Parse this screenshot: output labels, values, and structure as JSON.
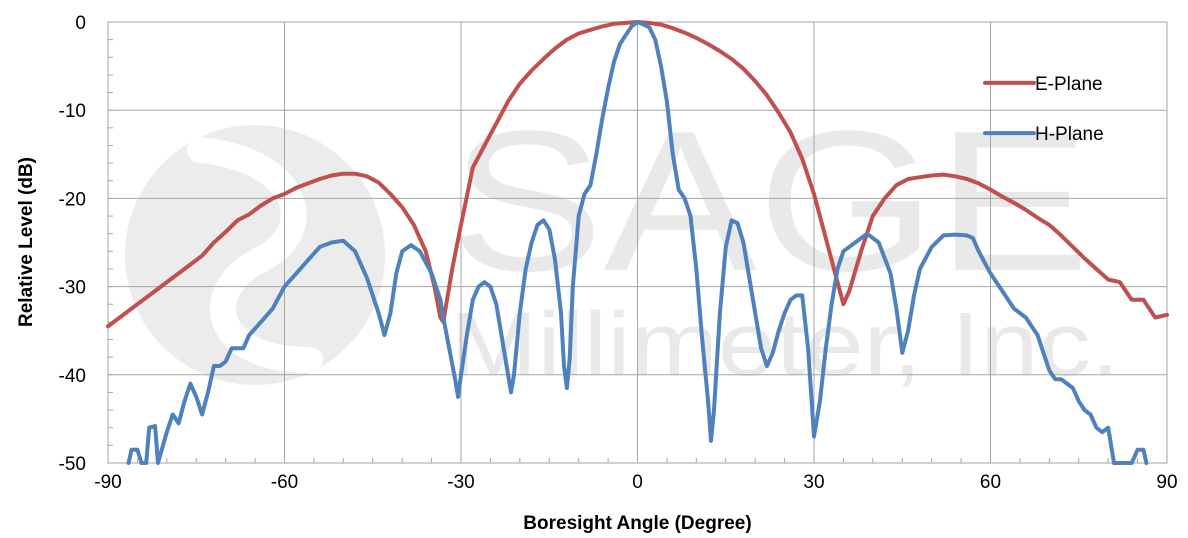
{
  "watermark": {
    "line1": "SAGE",
    "line2": "Millimeter, Inc."
  },
  "chart_data": {
    "type": "line",
    "xlabel": "Boresight Angle (Degree)",
    "ylabel": "Relative Level (dB)",
    "xlim": [
      -90,
      90
    ],
    "ylim": [
      -50,
      0
    ],
    "xticks": [
      -90,
      -60,
      -30,
      0,
      30,
      60,
      90
    ],
    "yticks": [
      0,
      -10,
      -20,
      -30,
      -40,
      -50
    ],
    "grid": true,
    "legend_position": "right",
    "series": [
      {
        "name": "E-Plane",
        "color": "#c0504d",
        "points": [
          [
            -90,
            -34.5
          ],
          [
            -88,
            -33.5
          ],
          [
            -86,
            -32.5
          ],
          [
            -84,
            -31.5
          ],
          [
            -82,
            -30.5
          ],
          [
            -80,
            -29.5
          ],
          [
            -78,
            -28.5
          ],
          [
            -76,
            -27.5
          ],
          [
            -74,
            -26.5
          ],
          [
            -72,
            -25.0
          ],
          [
            -70,
            -23.8
          ],
          [
            -68,
            -22.5
          ],
          [
            -66,
            -21.8
          ],
          [
            -64,
            -20.8
          ],
          [
            -62,
            -20.0
          ],
          [
            -60,
            -19.5
          ],
          [
            -58,
            -18.8
          ],
          [
            -56,
            -18.3
          ],
          [
            -54,
            -17.8
          ],
          [
            -52,
            -17.4
          ],
          [
            -50,
            -17.2
          ],
          [
            -48,
            -17.2
          ],
          [
            -46,
            -17.5
          ],
          [
            -44,
            -18.2
          ],
          [
            -42,
            -19.5
          ],
          [
            -40,
            -21.0
          ],
          [
            -38,
            -23.0
          ],
          [
            -36,
            -26.0
          ],
          [
            -34.5,
            -30.0
          ],
          [
            -33.5,
            -33.5
          ],
          [
            -33,
            -34.0
          ],
          [
            -32.5,
            -32.0
          ],
          [
            -31.5,
            -28.0
          ],
          [
            -30,
            -23.0
          ],
          [
            -28,
            -16.5
          ],
          [
            -26,
            -14.0
          ],
          [
            -24,
            -11.5
          ],
          [
            -22,
            -9.0
          ],
          [
            -20,
            -7.0
          ],
          [
            -18,
            -5.5
          ],
          [
            -16,
            -4.2
          ],
          [
            -14,
            -3.0
          ],
          [
            -12,
            -2.0
          ],
          [
            -10,
            -1.3
          ],
          [
            -8,
            -0.9
          ],
          [
            -6,
            -0.5
          ],
          [
            -4,
            -0.2
          ],
          [
            -2,
            -0.1
          ],
          [
            0,
            0.0
          ],
          [
            2,
            -0.1
          ],
          [
            4,
            -0.3
          ],
          [
            6,
            -0.7
          ],
          [
            8,
            -1.2
          ],
          [
            10,
            -1.8
          ],
          [
            12,
            -2.5
          ],
          [
            14,
            -3.3
          ],
          [
            16,
            -4.2
          ],
          [
            18,
            -5.3
          ],
          [
            20,
            -6.7
          ],
          [
            22,
            -8.3
          ],
          [
            24,
            -10.3
          ],
          [
            26,
            -12.5
          ],
          [
            28,
            -15.5
          ],
          [
            30,
            -19.5
          ],
          [
            32,
            -24.5
          ],
          [
            34,
            -29.5
          ],
          [
            35,
            -32.0
          ],
          [
            36,
            -30.5
          ],
          [
            38,
            -26.0
          ],
          [
            40,
            -22.0
          ],
          [
            42,
            -20.0
          ],
          [
            44,
            -18.5
          ],
          [
            46,
            -17.8
          ],
          [
            48,
            -17.6
          ],
          [
            50,
            -17.4
          ],
          [
            52,
            -17.3
          ],
          [
            54,
            -17.5
          ],
          [
            56,
            -17.8
          ],
          [
            58,
            -18.3
          ],
          [
            60,
            -19.0
          ],
          [
            62,
            -19.8
          ],
          [
            64,
            -20.5
          ],
          [
            66,
            -21.3
          ],
          [
            68,
            -22.2
          ],
          [
            70,
            -23.0
          ],
          [
            72,
            -24.2
          ],
          [
            74,
            -25.5
          ],
          [
            76,
            -26.8
          ],
          [
            78,
            -28.0
          ],
          [
            80,
            -29.2
          ],
          [
            82,
            -29.5
          ],
          [
            84,
            -31.5
          ],
          [
            86,
            -31.5
          ],
          [
            88,
            -33.5
          ],
          [
            90,
            -33.2
          ]
        ]
      },
      {
        "name": "H-Plane",
        "color": "#4f81bd",
        "points": [
          [
            -86.5,
            -50
          ],
          [
            -86,
            -48.5
          ],
          [
            -85,
            -48.5
          ],
          [
            -84.3,
            -50
          ],
          [
            -83.5,
            -50
          ],
          [
            -83,
            -46.0
          ],
          [
            -82,
            -45.8
          ],
          [
            -81.5,
            -50
          ],
          [
            -80,
            -46.5
          ],
          [
            -79,
            -44.5
          ],
          [
            -78,
            -45.5
          ],
          [
            -77,
            -43.0
          ],
          [
            -76,
            -41.0
          ],
          [
            -75,
            -42.5
          ],
          [
            -74,
            -44.5
          ],
          [
            -73,
            -42.0
          ],
          [
            -72,
            -39.0
          ],
          [
            -71,
            -39.0
          ],
          [
            -70,
            -38.5
          ],
          [
            -69,
            -37.0
          ],
          [
            -67,
            -37.0
          ],
          [
            -66,
            -35.5
          ],
          [
            -64,
            -34.0
          ],
          [
            -62,
            -32.5
          ],
          [
            -60,
            -30.0
          ],
          [
            -58,
            -28.5
          ],
          [
            -56,
            -27.0
          ],
          [
            -54,
            -25.5
          ],
          [
            -52,
            -25.0
          ],
          [
            -50,
            -24.8
          ],
          [
            -48,
            -26.0
          ],
          [
            -46,
            -29.0
          ],
          [
            -44,
            -33.0
          ],
          [
            -43,
            -35.5
          ],
          [
            -42,
            -33.0
          ],
          [
            -41,
            -28.5
          ],
          [
            -40,
            -26.0
          ],
          [
            -38.5,
            -25.3
          ],
          [
            -37,
            -26.0
          ],
          [
            -35,
            -28.5
          ],
          [
            -33.5,
            -31.5
          ],
          [
            -33,
            -33.5
          ],
          [
            -32,
            -37.0
          ],
          [
            -31,
            -40.5
          ],
          [
            -30.5,
            -42.5
          ],
          [
            -30,
            -40.0
          ],
          [
            -29,
            -35.5
          ],
          [
            -28,
            -31.5
          ],
          [
            -27,
            -30.0
          ],
          [
            -26,
            -29.5
          ],
          [
            -25,
            -30.0
          ],
          [
            -24,
            -32.0
          ],
          [
            -23,
            -36.0
          ],
          [
            -22,
            -40.0
          ],
          [
            -21.5,
            -42.0
          ],
          [
            -21,
            -40.0
          ],
          [
            -20,
            -33.0
          ],
          [
            -19,
            -28.0
          ],
          [
            -18,
            -25.0
          ],
          [
            -17,
            -23.0
          ],
          [
            -16,
            -22.5
          ],
          [
            -15,
            -23.5
          ],
          [
            -14,
            -27.0
          ],
          [
            -13,
            -33.0
          ],
          [
            -12.5,
            -39.0
          ],
          [
            -12,
            -41.5
          ],
          [
            -11.5,
            -38.0
          ],
          [
            -11,
            -30.0
          ],
          [
            -10,
            -22.0
          ],
          [
            -9,
            -19.5
          ],
          [
            -8,
            -18.5
          ],
          [
            -7,
            -15.0
          ],
          [
            -6,
            -11.0
          ],
          [
            -5,
            -7.5
          ],
          [
            -4,
            -4.5
          ],
          [
            -3,
            -2.5
          ],
          [
            -2,
            -1.5
          ],
          [
            -1,
            -0.5
          ],
          [
            0,
            0.0
          ],
          [
            1,
            -0.3
          ],
          [
            2,
            -0.6
          ],
          [
            3,
            -2.0
          ],
          [
            4,
            -5.0
          ],
          [
            5,
            -9.0
          ],
          [
            6,
            -15.0
          ],
          [
            7,
            -19.0
          ],
          [
            8,
            -20.0
          ],
          [
            9,
            -22.0
          ],
          [
            10,
            -28.0
          ],
          [
            11,
            -36.0
          ],
          [
            12,
            -43.0
          ],
          [
            12.5,
            -47.5
          ],
          [
            13,
            -44.0
          ],
          [
            14,
            -33.0
          ],
          [
            15,
            -25.5
          ],
          [
            16,
            -22.5
          ],
          [
            17,
            -22.8
          ],
          [
            18,
            -25.0
          ],
          [
            19,
            -29.0
          ],
          [
            20,
            -33.0
          ],
          [
            21,
            -37.0
          ],
          [
            22,
            -39.0
          ],
          [
            23,
            -37.5
          ],
          [
            24,
            -35.0
          ],
          [
            25,
            -33.0
          ],
          [
            26,
            -31.5
          ],
          [
            27,
            -31.0
          ],
          [
            28,
            -31.0
          ],
          [
            29,
            -37.0
          ],
          [
            30,
            -47.0
          ],
          [
            31,
            -43.0
          ],
          [
            32,
            -37.0
          ],
          [
            33,
            -32.0
          ],
          [
            34,
            -28.0
          ],
          [
            35,
            -26.0
          ],
          [
            37,
            -25.0
          ],
          [
            39,
            -24.0
          ],
          [
            41,
            -25.0
          ],
          [
            43,
            -28.5
          ],
          [
            44,
            -32.5
          ],
          [
            45,
            -37.5
          ],
          [
            46,
            -35.0
          ],
          [
            47,
            -31.0
          ],
          [
            48,
            -28.0
          ],
          [
            50,
            -25.5
          ],
          [
            52,
            -24.2
          ],
          [
            54,
            -24.1
          ],
          [
            56,
            -24.2
          ],
          [
            57,
            -24.5
          ],
          [
            58,
            -26.0
          ],
          [
            60,
            -28.5
          ],
          [
            62,
            -30.5
          ],
          [
            64,
            -32.5
          ],
          [
            66,
            -33.5
          ],
          [
            68,
            -35.5
          ],
          [
            69,
            -37.5
          ],
          [
            70,
            -39.5
          ],
          [
            71,
            -40.5
          ],
          [
            72,
            -40.5
          ],
          [
            73,
            -41.0
          ],
          [
            74,
            -41.5
          ],
          [
            75,
            -43.0
          ],
          [
            76,
            -44.0
          ],
          [
            77,
            -44.5
          ],
          [
            78,
            -46.0
          ],
          [
            79,
            -46.5
          ],
          [
            80,
            -46.0
          ],
          [
            81,
            -50.0
          ],
          [
            84,
            -50.0
          ],
          [
            85,
            -48.5
          ],
          [
            86,
            -48.5
          ],
          [
            86.5,
            -50
          ]
        ]
      }
    ]
  }
}
